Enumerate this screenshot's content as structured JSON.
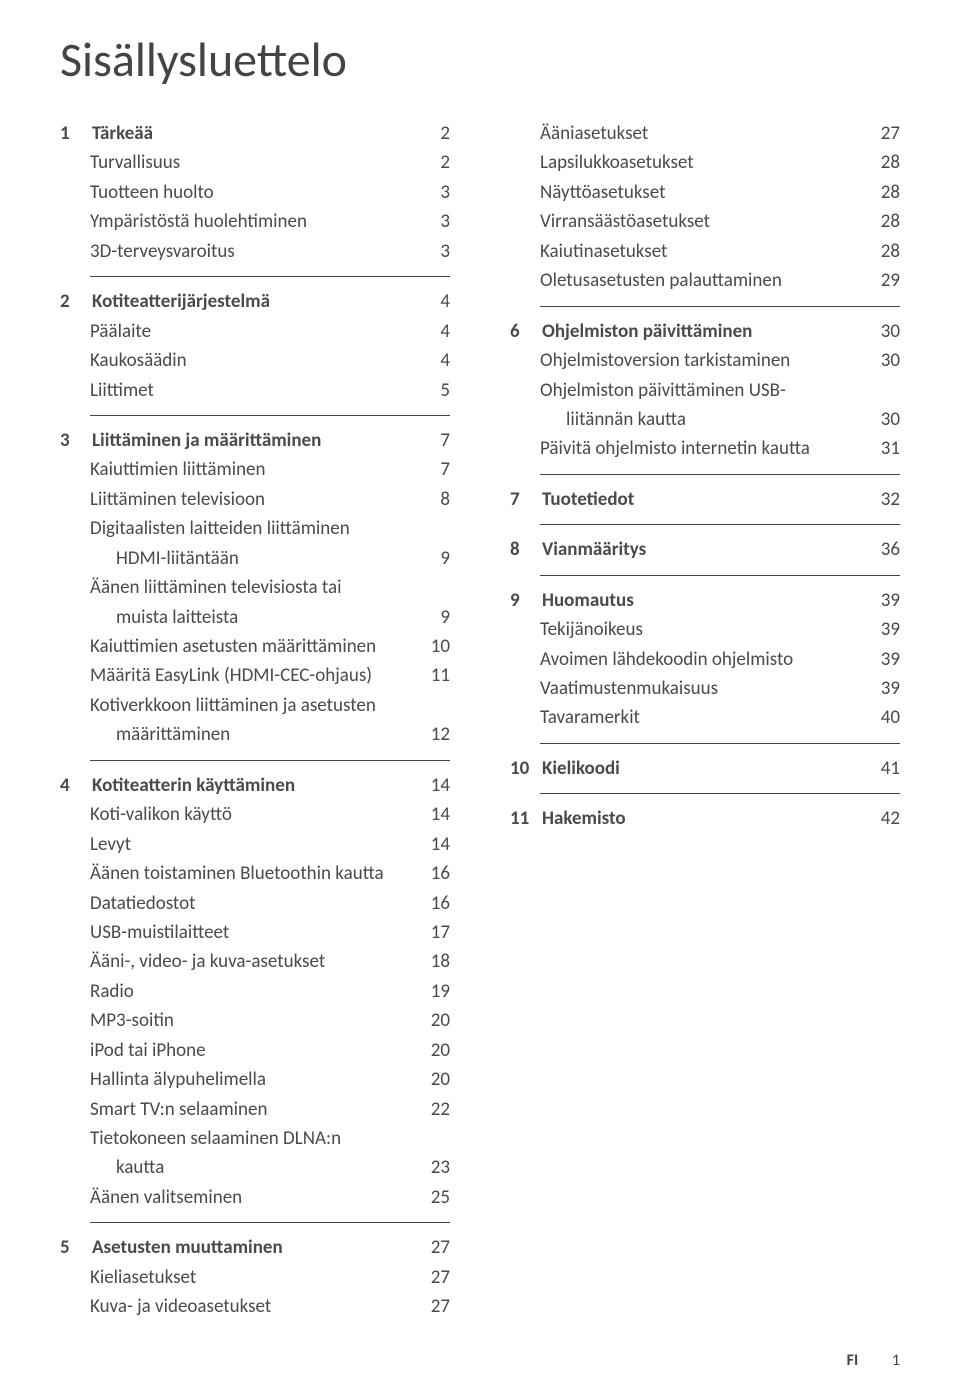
{
  "title": "Sisällysluettelo",
  "footer": {
    "lang": "FI",
    "page": "1"
  },
  "left": [
    {
      "type": "section",
      "num": "1",
      "label": "Tärkeää",
      "page": "2",
      "items": [
        {
          "label": "Turvallisuus",
          "page": "2"
        },
        {
          "label": "Tuotteen huolto",
          "page": "3"
        },
        {
          "label": "Ympäristöstä huolehtiminen",
          "page": "3"
        },
        {
          "label": "3D-terveysvaroitus",
          "page": "3"
        }
      ]
    },
    {
      "type": "section",
      "num": "2",
      "label": "Kotiteatterijärjestelmä",
      "page": "4",
      "items": [
        {
          "label": "Päälaite",
          "page": "4"
        },
        {
          "label": "Kaukosäädin",
          "page": "4"
        },
        {
          "label": "Liittimet",
          "page": "5"
        }
      ]
    },
    {
      "type": "section",
      "num": "3",
      "label": "Liittäminen ja määrittäminen",
      "page": "7",
      "items": [
        {
          "label": "Kaiuttimien liittäminen",
          "page": "7"
        },
        {
          "label": "Liittäminen televisioon",
          "page": "8"
        },
        {
          "label": "Digitaalisten laitteiden liittäminen",
          "page": ""
        },
        {
          "label": "HDMI-liitäntään",
          "page": "9",
          "indent": 2
        },
        {
          "label": "Äänen liittäminen televisiosta tai",
          "page": ""
        },
        {
          "label": "muista laitteista",
          "page": "9",
          "indent": 2
        },
        {
          "label": "Kaiuttimien asetusten määrittäminen",
          "page": "10"
        },
        {
          "label": "Määritä EasyLink (HDMI-CEC-ohjaus)",
          "page": "11"
        },
        {
          "label": "Kotiverkkoon liittäminen ja asetusten",
          "page": ""
        },
        {
          "label": "määrittäminen",
          "page": "12",
          "indent": 2
        }
      ]
    },
    {
      "type": "section",
      "num": "4",
      "label": "Kotiteatterin käyttäminen",
      "page": "14",
      "items": [
        {
          "label": "Koti-valikon käyttö",
          "page": "14"
        },
        {
          "label": "Levyt",
          "page": "14"
        },
        {
          "label": "Äänen toistaminen Bluetoothin kautta",
          "page": "16"
        },
        {
          "label": "Datatiedostot",
          "page": "16"
        },
        {
          "label": "USB-muistilaitteet",
          "page": "17"
        },
        {
          "label": "Ääni-, video- ja kuva-asetukset",
          "page": "18"
        },
        {
          "label": "Radio",
          "page": "19"
        },
        {
          "label": "MP3-soitin",
          "page": "20"
        },
        {
          "label": "iPod tai iPhone",
          "page": "20"
        },
        {
          "label": "Hallinta älypuhelimella",
          "page": "20"
        },
        {
          "label": "Smart TV:n selaaminen",
          "page": "22"
        },
        {
          "label": "Tietokoneen selaaminen DLNA:n",
          "page": ""
        },
        {
          "label": "kautta",
          "page": "23",
          "indent": 2
        },
        {
          "label": "Äänen valitseminen",
          "page": "25"
        }
      ]
    },
    {
      "type": "section",
      "num": "5",
      "label": "Asetusten muuttaminen",
      "page": "27",
      "items": [
        {
          "label": "Kieliasetukset",
          "page": "27"
        },
        {
          "label": "Kuva- ja videoasetukset",
          "page": "27"
        }
      ]
    }
  ],
  "right": [
    {
      "type": "cont",
      "items": [
        {
          "label": "Ääniasetukset",
          "page": "27"
        },
        {
          "label": "Lapsilukkoasetukset",
          "page": "28"
        },
        {
          "label": "Näyttöasetukset",
          "page": "28"
        },
        {
          "label": "Virransäästöasetukset",
          "page": "28"
        },
        {
          "label": "Kaiutinasetukset",
          "page": "28"
        },
        {
          "label": "Oletusasetusten palauttaminen",
          "page": "29"
        }
      ]
    },
    {
      "type": "section",
      "num": "6",
      "label": "Ohjelmiston päivittäminen",
      "page": "30",
      "items": [
        {
          "label": "Ohjelmistoversion tarkistaminen",
          "page": "30"
        },
        {
          "label": "Ohjelmiston päivittäminen USB-",
          "page": ""
        },
        {
          "label": "liitännän kautta",
          "page": "30",
          "indent": 2
        },
        {
          "label": "Päivitä ohjelmisto internetin kautta",
          "page": "31"
        }
      ]
    },
    {
      "type": "section",
      "num": "7",
      "label": "Tuotetiedot",
      "page": "32",
      "items": []
    },
    {
      "type": "section",
      "num": "8",
      "label": "Vianmääritys",
      "page": "36",
      "items": []
    },
    {
      "type": "section",
      "num": "9",
      "label": "Huomautus",
      "page": "39",
      "items": [
        {
          "label": "Tekijänoikeus",
          "page": "39"
        },
        {
          "label": "Avoimen lähdekoodin ohjelmisto",
          "page": "39"
        },
        {
          "label": "Vaatimustenmukaisuus",
          "page": "39"
        },
        {
          "label": "Tavaramerkit",
          "page": "40"
        }
      ]
    },
    {
      "type": "section",
      "num": "10",
      "label": "Kielikoodi",
      "page": "41",
      "items": []
    },
    {
      "type": "section",
      "num": "11",
      "label": "Hakemisto",
      "page": "42",
      "items": []
    }
  ]
}
